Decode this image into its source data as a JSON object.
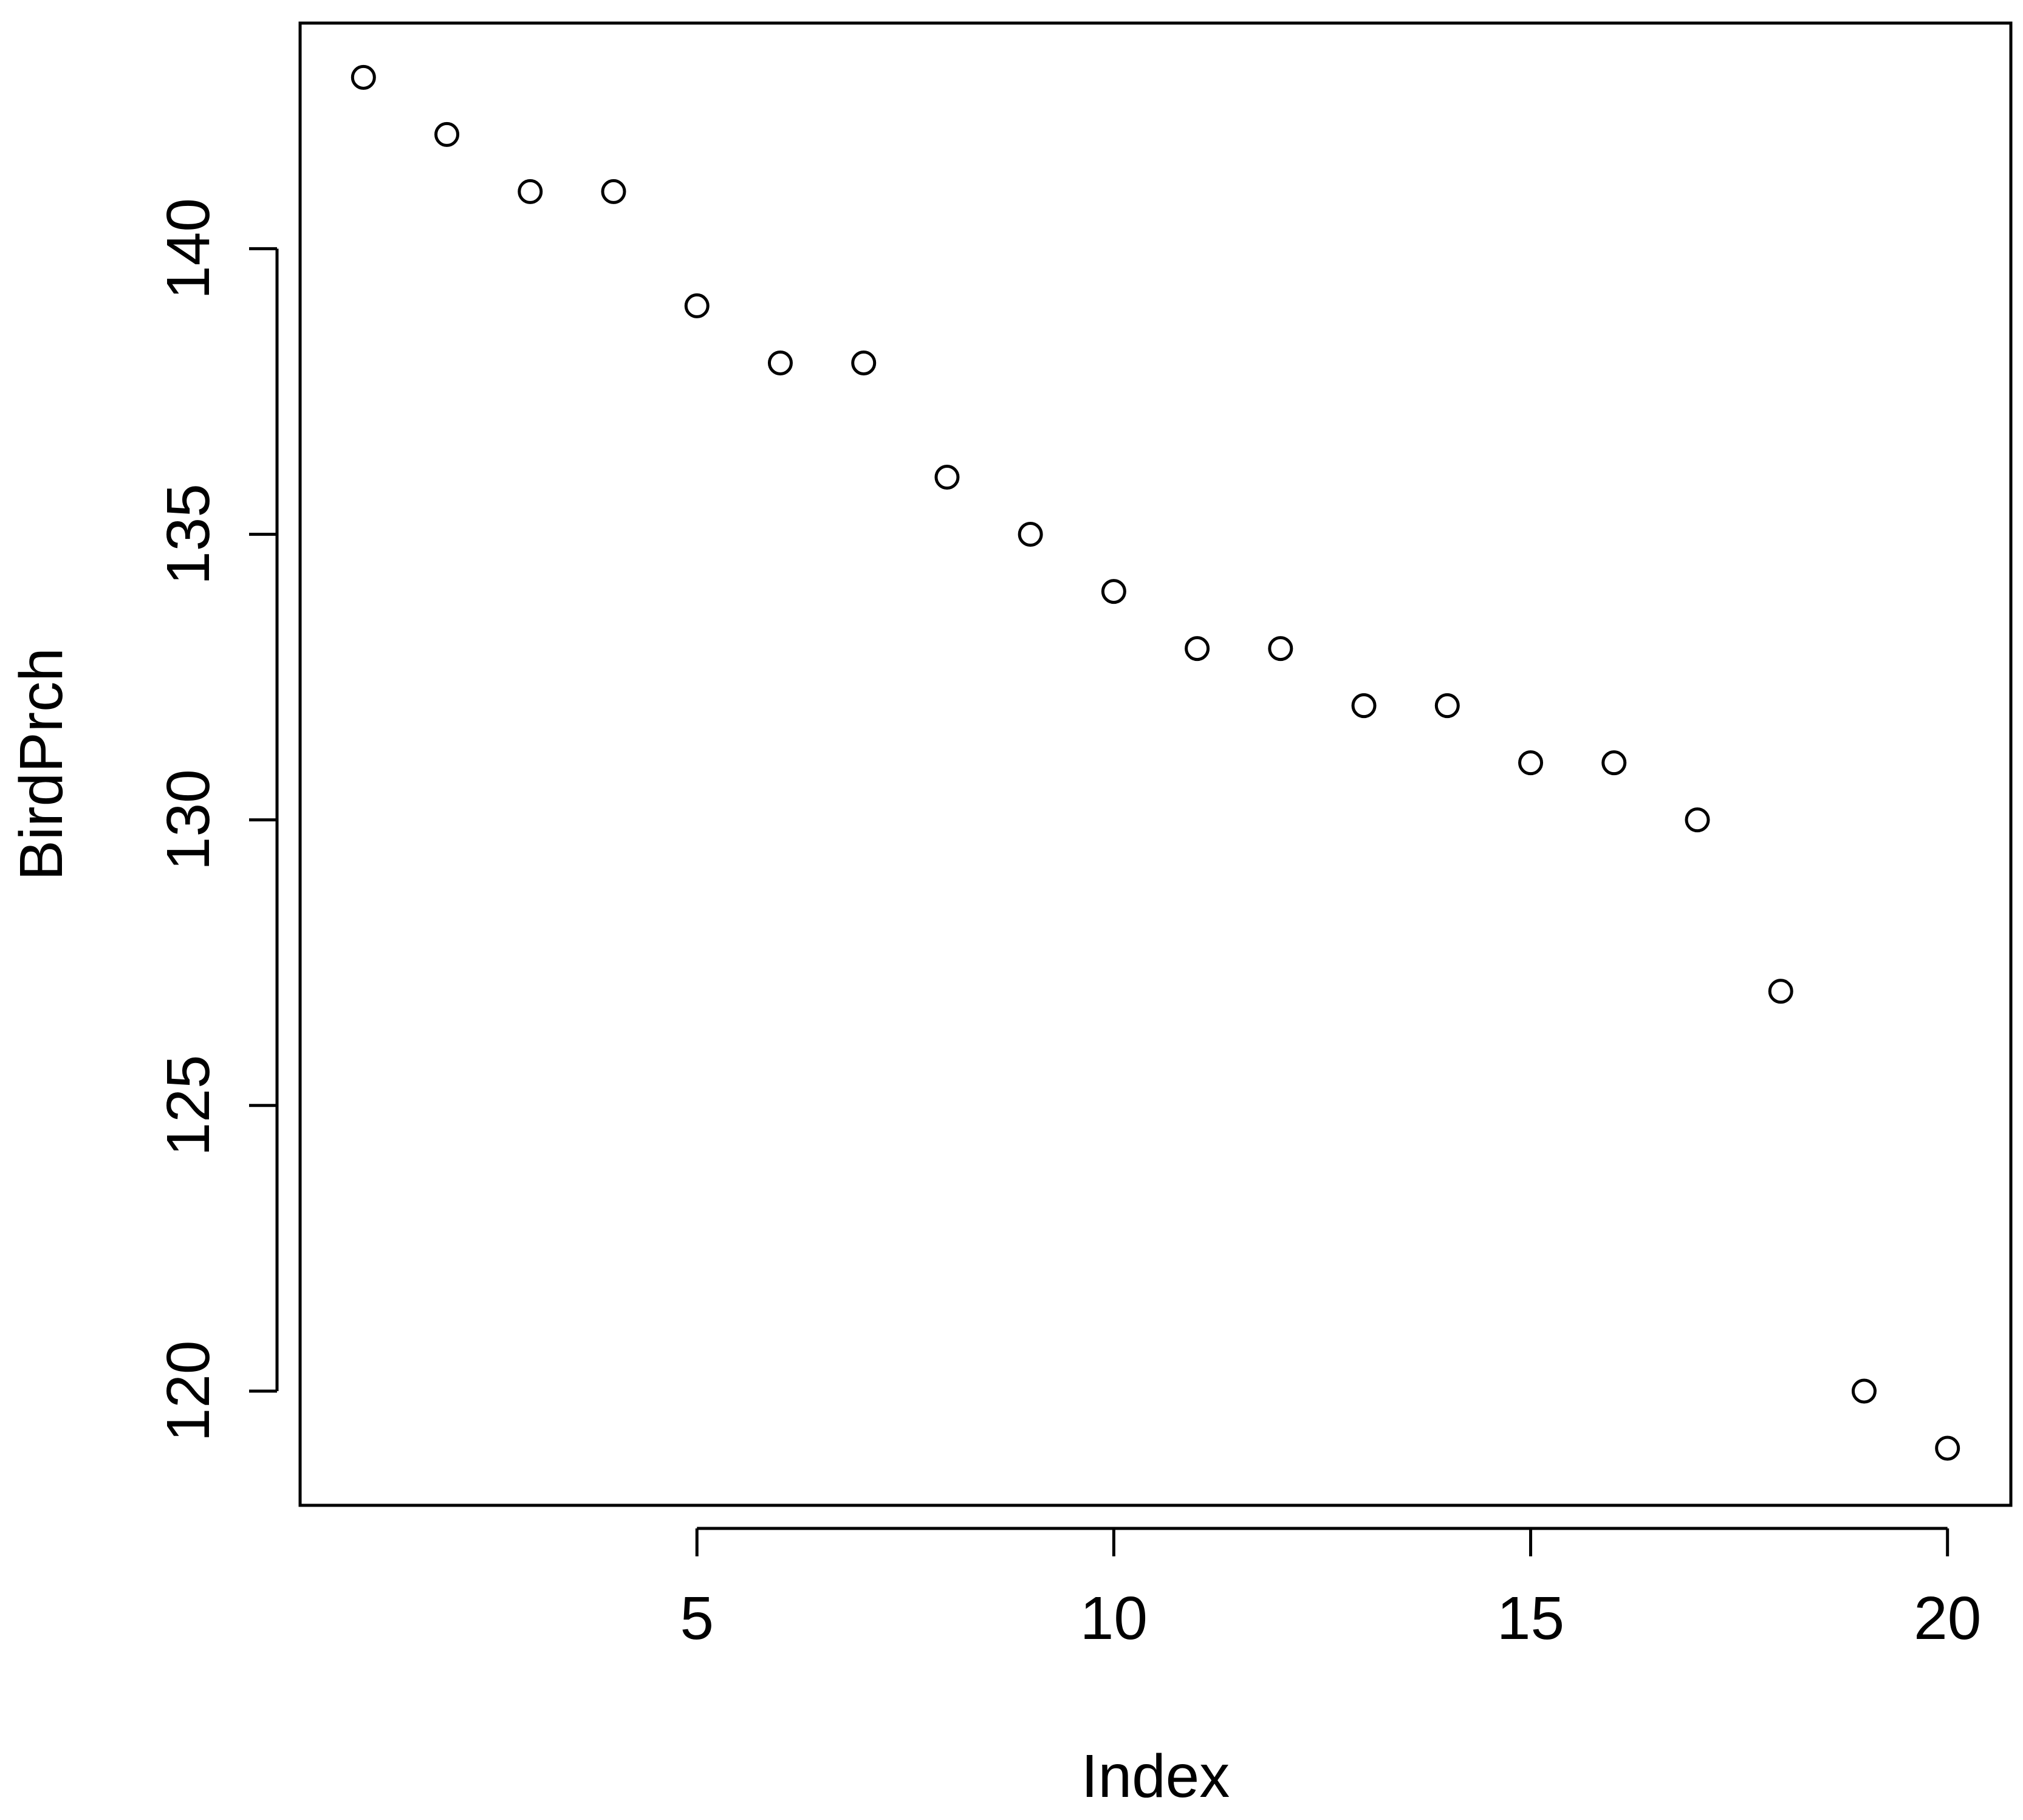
{
  "chart_data": {
    "type": "scatter",
    "title": "",
    "xlabel": "Index",
    "ylabel": "BirdPrch",
    "x": [
      1,
      2,
      3,
      4,
      5,
      6,
      7,
      8,
      9,
      10,
      11,
      12,
      13,
      14,
      15,
      16,
      17,
      18,
      19,
      20
    ],
    "y": [
      143,
      142,
      141,
      141,
      139,
      138,
      138,
      136,
      135,
      134,
      133,
      133,
      132,
      132,
      131,
      131,
      130,
      127,
      120,
      119
    ],
    "xlim": [
      0.24,
      20.76
    ],
    "ylim": [
      118,
      143.95
    ],
    "xticks": [
      5,
      10,
      15,
      20
    ],
    "yticks": [
      120,
      125,
      130,
      135,
      140
    ],
    "xtick_labels": [
      "5",
      "10",
      "15",
      "20"
    ],
    "ytick_labels": [
      "120",
      "125",
      "130",
      "135",
      "140"
    ],
    "marker": "open-circle",
    "grid": false,
    "legend": "none",
    "colors": {
      "points": "#000000",
      "axes": "#000000",
      "background": "#ffffff"
    }
  }
}
